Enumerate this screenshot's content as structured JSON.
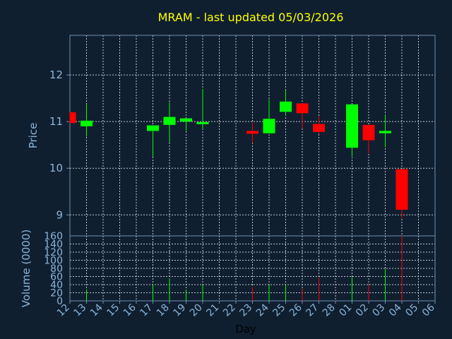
{
  "chart_data": {
    "type": "candlestick",
    "title": "MRAM - last updated 05/03/2026",
    "price_panel": {
      "ylabel": "Price",
      "ylim": [
        8.55,
        12.85
      ],
      "yticks": [
        9,
        10,
        11,
        12
      ],
      "grid": true
    },
    "volume_panel": {
      "ylabel": "Volume (0000)",
      "ylim": [
        0,
        160
      ],
      "yticks": [
        0,
        20,
        40,
        60,
        80,
        100,
        120,
        140,
        160
      ],
      "grid": true
    },
    "xlabel": "Day",
    "x_ticks": [
      "12",
      "13",
      "14",
      "15",
      "16",
      "17",
      "18",
      "19",
      "20",
      "21",
      "22",
      "23",
      "24",
      "25",
      "26",
      "27",
      "28",
      "01",
      "02",
      "03",
      "04",
      "05",
      "06"
    ],
    "colors": {
      "up": "#00ff00",
      "down": "#ff0000",
      "grid": "#ffffff",
      "frame": "#6f8faf"
    },
    "candles": [
      {
        "x": 0,
        "open": 11.2,
        "close": 10.97,
        "high": 11.2,
        "low": 10.97,
        "volume": 0
      },
      {
        "x": 1,
        "open": 10.9,
        "close": 11.02,
        "high": 11.38,
        "low": 10.68,
        "volume": 28
      },
      {
        "x": 5,
        "open": 10.8,
        "close": 10.92,
        "high": 10.92,
        "low": 10.25,
        "volume": 40
      },
      {
        "x": 6,
        "open": 10.93,
        "close": 11.1,
        "high": 11.42,
        "low": 10.55,
        "volume": 55
      },
      {
        "x": 7,
        "open": 11.0,
        "close": 11.07,
        "high": 11.07,
        "low": 10.8,
        "volume": 28
      },
      {
        "x": 8,
        "open": 10.97,
        "close": 10.99,
        "high": 11.7,
        "low": 10.84,
        "volume": 40
      },
      {
        "x": 11,
        "open": 10.8,
        "close": 10.74,
        "high": 10.98,
        "low": 10.54,
        "volume": 35
      },
      {
        "x": 12,
        "open": 10.75,
        "close": 11.06,
        "high": 11.48,
        "low": 10.75,
        "volume": 40
      },
      {
        "x": 13,
        "open": 11.21,
        "close": 11.43,
        "high": 11.68,
        "low": 11.13,
        "volume": 40
      },
      {
        "x": 14,
        "open": 11.39,
        "close": 11.18,
        "high": 11.39,
        "low": 10.85,
        "volume": 30
      },
      {
        "x": 15,
        "open": 10.95,
        "close": 10.78,
        "high": 11.12,
        "low": 10.73,
        "volume": 58
      },
      {
        "x": 17,
        "open": 10.44,
        "close": 11.37,
        "high": 11.37,
        "low": 10.26,
        "volume": 58
      },
      {
        "x": 18,
        "open": 10.93,
        "close": 10.6,
        "high": 10.93,
        "low": 10.32,
        "volume": 40
      },
      {
        "x": 19,
        "open": 10.75,
        "close": 10.8,
        "high": 11.15,
        "low": 10.45,
        "volume": 78
      },
      {
        "x": 20,
        "open": 9.98,
        "close": 9.11,
        "high": 9.98,
        "low": 8.93,
        "volume": 160
      }
    ]
  }
}
